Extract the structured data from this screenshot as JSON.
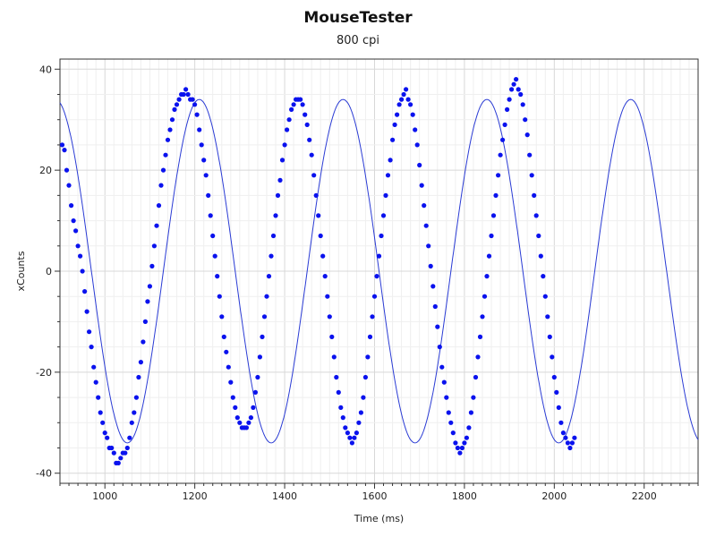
{
  "chart_data": {
    "type": "scatter",
    "title": "MouseTester",
    "subtitle": "800 cpi",
    "xlabel": "Time (ms)",
    "ylabel": "xCounts",
    "xlim": [
      900,
      2320
    ],
    "ylim": [
      -42,
      42
    ],
    "x_ticks": [
      1000,
      1200,
      1400,
      1600,
      1800,
      2000,
      2200
    ],
    "y_ticks": [
      -40,
      -20,
      0,
      20,
      40
    ],
    "grid": true,
    "point_color": "#0a12ee",
    "line_color": "#2a3bd4",
    "series": [
      {
        "kind": "points",
        "points": [
          [
            905,
            25
          ],
          [
            910,
            24
          ],
          [
            915,
            20
          ],
          [
            920,
            17
          ],
          [
            925,
            13
          ],
          [
            930,
            10
          ],
          [
            935,
            8
          ],
          [
            940,
            5
          ],
          [
            945,
            3
          ],
          [
            950,
            0
          ],
          [
            955,
            -4
          ],
          [
            960,
            -8
          ],
          [
            965,
            -12
          ],
          [
            970,
            -15
          ],
          [
            975,
            -19
          ],
          [
            980,
            -22
          ],
          [
            985,
            -25
          ],
          [
            990,
            -28
          ],
          [
            995,
            -30
          ],
          [
            1000,
            -32
          ],
          [
            1005,
            -33
          ],
          [
            1010,
            -35
          ],
          [
            1015,
            -35
          ],
          [
            1020,
            -36
          ],
          [
            1025,
            -38
          ],
          [
            1030,
            -38
          ],
          [
            1035,
            -37
          ],
          [
            1040,
            -36
          ],
          [
            1045,
            -36
          ],
          [
            1050,
            -35
          ],
          [
            1055,
            -33
          ],
          [
            1060,
            -30
          ],
          [
            1065,
            -28
          ],
          [
            1070,
            -25
          ],
          [
            1075,
            -21
          ],
          [
            1080,
            -18
          ],
          [
            1085,
            -14
          ],
          [
            1090,
            -10
          ],
          [
            1095,
            -6
          ],
          [
            1100,
            -3
          ],
          [
            1105,
            1
          ],
          [
            1110,
            5
          ],
          [
            1115,
            9
          ],
          [
            1120,
            13
          ],
          [
            1125,
            17
          ],
          [
            1130,
            20
          ],
          [
            1135,
            23
          ],
          [
            1140,
            26
          ],
          [
            1145,
            28
          ],
          [
            1150,
            30
          ],
          [
            1155,
            32
          ],
          [
            1160,
            33
          ],
          [
            1165,
            34
          ],
          [
            1170,
            35
          ],
          [
            1175,
            35
          ],
          [
            1180,
            36
          ],
          [
            1185,
            35
          ],
          [
            1190,
            34
          ],
          [
            1195,
            34
          ],
          [
            1200,
            33
          ],
          [
            1205,
            31
          ],
          [
            1210,
            28
          ],
          [
            1215,
            25
          ],
          [
            1220,
            22
          ],
          [
            1225,
            19
          ],
          [
            1230,
            15
          ],
          [
            1235,
            11
          ],
          [
            1240,
            7
          ],
          [
            1245,
            3
          ],
          [
            1250,
            -1
          ],
          [
            1255,
            -5
          ],
          [
            1260,
            -9
          ],
          [
            1265,
            -13
          ],
          [
            1270,
            -16
          ],
          [
            1275,
            -19
          ],
          [
            1280,
            -22
          ],
          [
            1285,
            -25
          ],
          [
            1290,
            -27
          ],
          [
            1295,
            -29
          ],
          [
            1300,
            -30
          ],
          [
            1305,
            -31
          ],
          [
            1310,
            -31
          ],
          [
            1315,
            -31
          ],
          [
            1320,
            -30
          ],
          [
            1325,
            -29
          ],
          [
            1330,
            -27
          ],
          [
            1335,
            -24
          ],
          [
            1340,
            -21
          ],
          [
            1345,
            -17
          ],
          [
            1350,
            -13
          ],
          [
            1355,
            -9
          ],
          [
            1360,
            -5
          ],
          [
            1365,
            -1
          ],
          [
            1370,
            3
          ],
          [
            1375,
            7
          ],
          [
            1380,
            11
          ],
          [
            1385,
            15
          ],
          [
            1390,
            18
          ],
          [
            1395,
            22
          ],
          [
            1400,
            25
          ],
          [
            1405,
            28
          ],
          [
            1410,
            30
          ],
          [
            1415,
            32
          ],
          [
            1420,
            33
          ],
          [
            1425,
            34
          ],
          [
            1430,
            34
          ],
          [
            1435,
            34
          ],
          [
            1440,
            33
          ],
          [
            1445,
            31
          ],
          [
            1450,
            29
          ],
          [
            1455,
            26
          ],
          [
            1460,
            23
          ],
          [
            1465,
            19
          ],
          [
            1470,
            15
          ],
          [
            1475,
            11
          ],
          [
            1480,
            7
          ],
          [
            1485,
            3
          ],
          [
            1490,
            -1
          ],
          [
            1495,
            -5
          ],
          [
            1500,
            -9
          ],
          [
            1505,
            -13
          ],
          [
            1510,
            -17
          ],
          [
            1515,
            -21
          ],
          [
            1520,
            -24
          ],
          [
            1525,
            -27
          ],
          [
            1530,
            -29
          ],
          [
            1535,
            -31
          ],
          [
            1540,
            -32
          ],
          [
            1545,
            -33
          ],
          [
            1550,
            -34
          ],
          [
            1555,
            -33
          ],
          [
            1560,
            -32
          ],
          [
            1565,
            -30
          ],
          [
            1570,
            -28
          ],
          [
            1575,
            -25
          ],
          [
            1580,
            -21
          ],
          [
            1585,
            -17
          ],
          [
            1590,
            -13
          ],
          [
            1595,
            -9
          ],
          [
            1600,
            -5
          ],
          [
            1605,
            -1
          ],
          [
            1610,
            3
          ],
          [
            1615,
            7
          ],
          [
            1620,
            11
          ],
          [
            1625,
            15
          ],
          [
            1630,
            19
          ],
          [
            1635,
            22
          ],
          [
            1640,
            26
          ],
          [
            1645,
            29
          ],
          [
            1650,
            31
          ],
          [
            1655,
            33
          ],
          [
            1660,
            34
          ],
          [
            1665,
            35
          ],
          [
            1670,
            36
          ],
          [
            1675,
            34
          ],
          [
            1680,
            33
          ],
          [
            1685,
            31
          ],
          [
            1690,
            28
          ],
          [
            1695,
            25
          ],
          [
            1700,
            21
          ],
          [
            1705,
            17
          ],
          [
            1710,
            13
          ],
          [
            1715,
            9
          ],
          [
            1720,
            5
          ],
          [
            1725,
            1
          ],
          [
            1730,
            -3
          ],
          [
            1735,
            -7
          ],
          [
            1740,
            -11
          ],
          [
            1745,
            -15
          ],
          [
            1750,
            -19
          ],
          [
            1755,
            -22
          ],
          [
            1760,
            -25
          ],
          [
            1765,
            -28
          ],
          [
            1770,
            -30
          ],
          [
            1775,
            -32
          ],
          [
            1780,
            -34
          ],
          [
            1785,
            -35
          ],
          [
            1790,
            -36
          ],
          [
            1795,
            -35
          ],
          [
            1800,
            -34
          ],
          [
            1805,
            -33
          ],
          [
            1810,
            -31
          ],
          [
            1815,
            -28
          ],
          [
            1820,
            -25
          ],
          [
            1825,
            -21
          ],
          [
            1830,
            -17
          ],
          [
            1835,
            -13
          ],
          [
            1840,
            -9
          ],
          [
            1845,
            -5
          ],
          [
            1850,
            -1
          ],
          [
            1855,
            3
          ],
          [
            1860,
            7
          ],
          [
            1865,
            11
          ],
          [
            1870,
            15
          ],
          [
            1875,
            19
          ],
          [
            1880,
            23
          ],
          [
            1885,
            26
          ],
          [
            1890,
            29
          ],
          [
            1895,
            32
          ],
          [
            1900,
            34
          ],
          [
            1905,
            36
          ],
          [
            1910,
            37
          ],
          [
            1915,
            38
          ],
          [
            1920,
            36
          ],
          [
            1925,
            35
          ],
          [
            1930,
            33
          ],
          [
            1935,
            30
          ],
          [
            1940,
            27
          ],
          [
            1945,
            23
          ],
          [
            1950,
            19
          ],
          [
            1955,
            15
          ],
          [
            1960,
            11
          ],
          [
            1965,
            7
          ],
          [
            1970,
            3
          ],
          [
            1975,
            -1
          ],
          [
            1980,
            -5
          ],
          [
            1985,
            -9
          ],
          [
            1990,
            -13
          ],
          [
            1995,
            -17
          ],
          [
            2000,
            -21
          ],
          [
            2005,
            -24
          ],
          [
            2010,
            -27
          ],
          [
            2015,
            -30
          ],
          [
            2020,
            -32
          ],
          [
            2025,
            -33
          ],
          [
            2030,
            -34
          ],
          [
            2035,
            -35
          ],
          [
            2040,
            -34
          ],
          [
            2045,
            -33
          ]
        ]
      },
      {
        "kind": "fit_curve",
        "amplitude": 34,
        "offset": 0,
        "period_ms": 320,
        "peak_at_ms": 1210
      }
    ]
  }
}
